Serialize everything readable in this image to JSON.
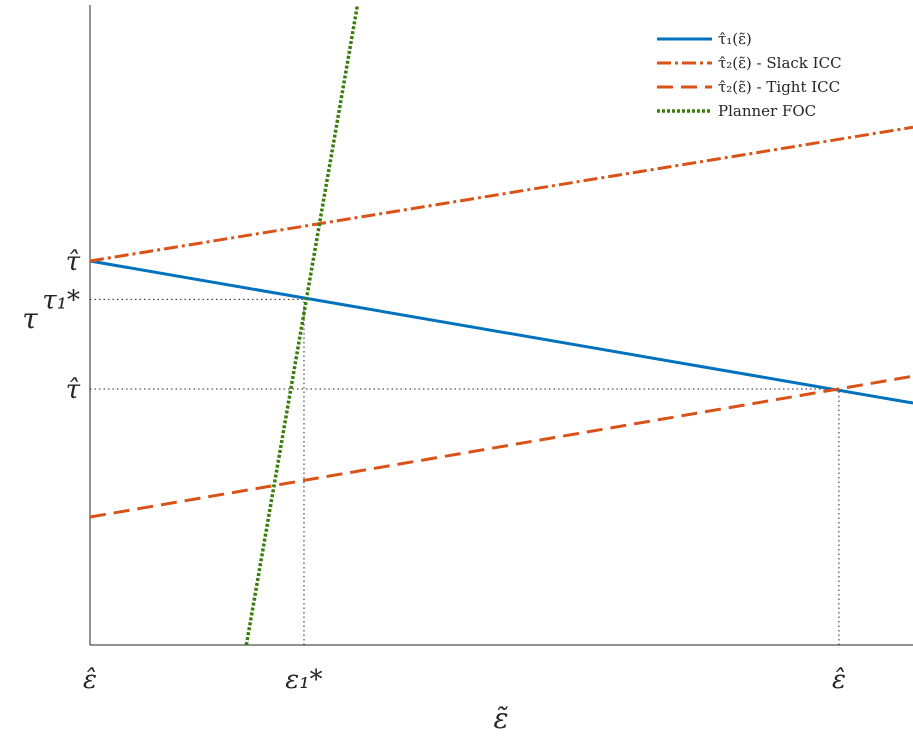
{
  "chart_data": {
    "type": "line",
    "title": "",
    "xlabel": "ε̃",
    "ylabel": "τ",
    "xlim": [
      0,
      10
    ],
    "ylim": [
      0,
      10
    ],
    "grid": false,
    "legend_position": "top-right",
    "x_ticks": [
      {
        "value": 0,
        "label": "ε̂"
      },
      {
        "value": 2.6,
        "label": "ε₁*"
      },
      {
        "value": 9.1,
        "label": "ε̂"
      }
    ],
    "y_ticks": [
      {
        "value": 6.0,
        "label": "τ̂"
      },
      {
        "value": 5.4,
        "label": "τ₁*"
      },
      {
        "value": 4.0,
        "label": "τ̂"
      }
    ],
    "reference_lines": [
      {
        "name": "tau1-star",
        "x": [
          0,
          2.6
        ],
        "y": [
          5.4,
          5.4
        ]
      },
      {
        "name": "eps1-star",
        "x": [
          2.6,
          2.6
        ],
        "y": [
          0,
          5.4
        ]
      },
      {
        "name": "tau-hat-low",
        "x": [
          0,
          9.1
        ],
        "y": [
          4.0,
          4.0
        ]
      },
      {
        "name": "eps-hat-right",
        "x": [
          9.1,
          9.1
        ],
        "y": [
          0,
          4.0
        ]
      }
    ],
    "series": [
      {
        "name": "τ̂₁(ε̃)",
        "style": "solid",
        "color": "#0072BD",
        "x": [
          0,
          10
        ],
        "y": [
          6.0,
          3.78
        ]
      },
      {
        "name": "τ̂₂(ε̃) - Slack ICC",
        "style": "dashdot",
        "color": "#D95319",
        "x": [
          0,
          10
        ],
        "y": [
          6.0,
          8.09
        ]
      },
      {
        "name": "τ̂₂(ε̃) - Tight ICC",
        "style": "dashed",
        "color": "#D95319",
        "x": [
          0,
          10
        ],
        "y": [
          2.0,
          4.2
        ]
      },
      {
        "name": "Planner FOC",
        "style": "dotted",
        "color": "#3A7D0A",
        "x": [
          1.9,
          3.25
        ],
        "y": [
          0,
          10
        ]
      }
    ]
  }
}
